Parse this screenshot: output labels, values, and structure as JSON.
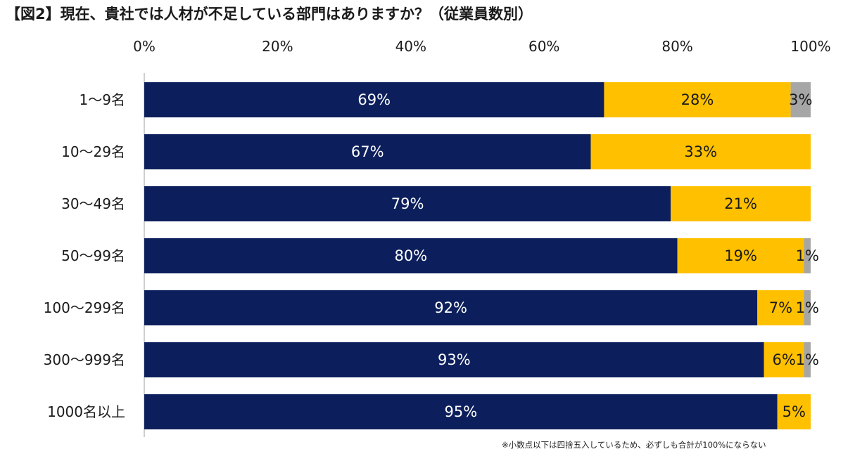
{
  "title": "【図2】現在、貴社では人材が不足している部門はありますか？（従業員数別）",
  "footnote": "※小数点以下は四捨五入しているため、必ずしも合計が100%にならない",
  "colors": {
    "series1": "#0c1f5c",
    "series2": "#ffc000",
    "series3": "#a6a6a6",
    "axis": "#bfbfbf"
  },
  "chart_data": {
    "type": "bar",
    "orientation": "horizontal",
    "stacked": true,
    "title": "【図2】現在、貴社では人材が不足している部門はありますか？（従業員数別）",
    "xlabel": "",
    "ylabel": "",
    "xlim": [
      0,
      100
    ],
    "x_ticks": [
      "0%",
      "20%",
      "40%",
      "60%",
      "80%",
      "100%"
    ],
    "x_tick_values": [
      0,
      20,
      40,
      60,
      80,
      100
    ],
    "legend": "none",
    "grid": false,
    "categories": [
      "1～9名",
      "10～29名",
      "30～49名",
      "50～99名",
      "100～299名",
      "300～999名",
      "1000名以上"
    ],
    "series": [
      {
        "values": [
          69,
          67,
          79,
          80,
          92,
          93,
          95
        ],
        "labels": [
          "69%",
          "67%",
          "79%",
          "80%",
          "92%",
          "93%",
          "95%"
        ]
      },
      {
        "values": [
          28,
          33,
          21,
          19,
          7,
          6,
          5
        ],
        "labels": [
          "28%",
          "33%",
          "21%",
          "19%",
          "7%",
          "6%",
          "5%"
        ]
      },
      {
        "values": [
          3,
          0,
          0,
          1,
          1,
          1,
          0
        ],
        "labels": [
          "3%",
          "",
          "",
          "1%",
          "1%",
          "1%",
          ""
        ]
      }
    ]
  }
}
